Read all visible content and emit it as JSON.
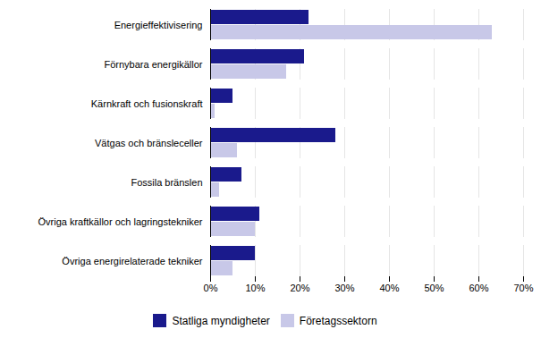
{
  "chart_data": {
    "type": "bar",
    "orientation": "horizontal",
    "categories": [
      "Energieffektivisering",
      "Förnybara energikällor",
      "Kärnkraft och fusionskraft",
      "Vätgas och bränsleceller",
      "Fossila bränslen",
      "Övriga kraftkällor och lagringstekniker",
      "Övriga energirelaterade tekniker"
    ],
    "series": [
      {
        "name": "Statliga myndigheter",
        "color": "#1a1a8c",
        "values": [
          22,
          21,
          5,
          28,
          7,
          11,
          10
        ]
      },
      {
        "name": "Företagssektorn",
        "color": "#c8c8e8",
        "values": [
          63,
          17,
          1,
          6,
          2,
          10,
          5
        ]
      }
    ],
    "xlim": [
      0,
      70
    ],
    "xticks": [
      {
        "value": 0,
        "label": "0%"
      },
      {
        "value": 10,
        "label": "10%"
      },
      {
        "value": 20,
        "label": "20%"
      },
      {
        "value": 30,
        "label": "30%"
      },
      {
        "value": 40,
        "label": "40%"
      },
      {
        "value": 50,
        "label": "50%"
      },
      {
        "value": 60,
        "label": "60%"
      },
      {
        "value": 70,
        "label": "70%"
      }
    ],
    "grid": true,
    "legend": "bottom"
  }
}
